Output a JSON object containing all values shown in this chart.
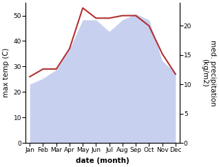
{
  "months": [
    "Jan",
    "Feb",
    "Mar",
    "Apr",
    "May",
    "Jun",
    "Jul",
    "Aug",
    "Sep",
    "Oct",
    "Nov",
    "Dec"
  ],
  "temp": [
    26,
    29,
    29,
    37,
    53,
    49,
    49,
    50,
    50,
    46,
    35,
    27
  ],
  "precip": [
    10.0,
    11.0,
    12.5,
    16.0,
    21.0,
    21.0,
    19.0,
    21.0,
    22.0,
    21.0,
    14.0,
    12.0
  ],
  "temp_color": "#b03030",
  "precip_fill_color": "#c8d0f0",
  "left_ylim": [
    0,
    55
  ],
  "right_ylim": [
    0,
    23.9
  ],
  "left_yticks": [
    0,
    10,
    20,
    30,
    40,
    50
  ],
  "right_yticks": [
    0,
    5,
    10,
    15,
    20
  ],
  "xlabel": "date (month)",
  "ylabel_left": "max temp (C)",
  "ylabel_right": "med. precipitation\n(kg/m2)",
  "label_fontsize": 7.5,
  "tick_fontsize": 6.5
}
